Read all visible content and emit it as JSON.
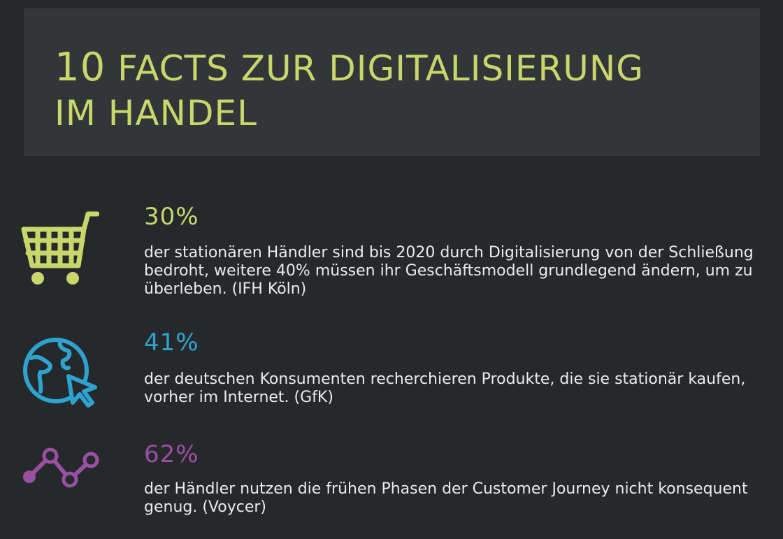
{
  "title": {
    "number": "10",
    "line1_rest": "FACTS ZUR DIGITALISIERUNG",
    "line2": "IM HANDEL"
  },
  "colors": {
    "background": "#25292b",
    "title_box": "#323638",
    "title_text": "#c8d66b",
    "body_text": "#e9ecec"
  },
  "facts": [
    {
      "icon": "shopping-cart-icon",
      "color": "#c8d66b",
      "percent": "30%",
      "text": "der stationären Händler sind bis 2020 durch Digitalisierung von der Schließung bedroht, weitere 40% müssen ihr Geschäftsmodell grundlegend ändern, um zu überleben. (IFH Köln)"
    },
    {
      "icon": "globe-cursor-icon",
      "color": "#2fa3cf",
      "percent": "41%",
      "text": "der deutschen Konsumenten recherchieren Produkte, die sie stationär kaufen, vorher im Internet. (GfK)"
    },
    {
      "icon": "customer-journey-path-icon",
      "color": "#9a4fa3",
      "percent": "62%",
      "text": "der Händler nutzen die frühen Phasen der Customer Journey nicht konsequent genug. (Voycer)"
    }
  ]
}
